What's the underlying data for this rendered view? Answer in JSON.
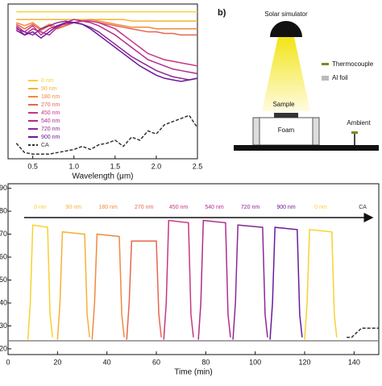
{
  "chart_data": [
    {
      "type": "line",
      "xlabel": "Wavelength (μm)",
      "xlim": [
        0.2,
        2.5
      ],
      "ylim": [
        0,
        100
      ],
      "xticks": [
        {
          "value": 0.5,
          "label": "0.5"
        },
        {
          "value": 1,
          "label": "1.0"
        },
        {
          "value": 1.5,
          "label": "1.5"
        },
        {
          "value": 2,
          "label": "2.0"
        },
        {
          "value": 2.5,
          "label": "2.5"
        }
      ],
      "legend": "lower left",
      "x": [
        0.3,
        0.4,
        0.5,
        0.6,
        0.7,
        0.8,
        0.9,
        1.0,
        1.1,
        1.2,
        1.3,
        1.4,
        1.5,
        1.6,
        1.7,
        1.8,
        1.9,
        2.0,
        2.1,
        2.2,
        2.3,
        2.4,
        2.5
      ],
      "series": [
        {
          "name": "0 nm",
          "color": "#f7d230",
          "values": [
            95,
            95,
            95,
            95,
            95,
            95,
            95,
            95,
            95,
            95,
            95,
            95,
            95,
            95,
            95,
            95,
            95,
            95,
            95,
            95,
            95,
            95,
            95
          ]
        },
        {
          "name": "90 nm",
          "color": "#f5b235",
          "values": [
            90,
            90,
            90,
            90,
            90,
            90,
            90,
            90,
            90,
            90,
            90,
            90,
            90,
            90,
            89,
            89,
            89,
            89,
            89,
            89,
            89,
            89,
            89
          ]
        },
        {
          "name": "180 nm",
          "color": "#f08a40",
          "values": [
            88,
            86,
            88,
            84,
            87,
            85,
            86,
            88,
            89,
            90,
            89,
            88,
            87,
            86,
            85,
            85,
            85,
            84,
            84,
            84,
            84,
            84,
            84
          ]
        },
        {
          "name": "270 nm",
          "color": "#e66650",
          "values": [
            87,
            84,
            87,
            83,
            86,
            84,
            86,
            88,
            89,
            89,
            88,
            87,
            86,
            85,
            84,
            83,
            82,
            82,
            81,
            81,
            80,
            80,
            80
          ]
        },
        {
          "name": "450 nm",
          "color": "#c83682",
          "values": [
            86,
            82,
            86,
            80,
            84,
            86,
            87,
            88,
            89,
            89,
            88,
            86,
            84,
            80,
            76,
            72,
            68,
            66,
            64,
            63,
            62,
            61,
            60
          ]
        },
        {
          "name": "540 nm",
          "color": "#b02c8e",
          "values": [
            85,
            80,
            84,
            82,
            80,
            85,
            88,
            90,
            89,
            88,
            86,
            83,
            80,
            76,
            72,
            68,
            64,
            62,
            60,
            58,
            57,
            56,
            55
          ]
        },
        {
          "name": "720 nm",
          "color": "#8c2896",
          "values": [
            84,
            82,
            80,
            84,
            86,
            88,
            89,
            88,
            87,
            85,
            82,
            78,
            74,
            70,
            66,
            63,
            60,
            57,
            55,
            53,
            52,
            51,
            52
          ]
        },
        {
          "name": "900 nm",
          "color": "#6a1a9a",
          "values": [
            83,
            80,
            82,
            78,
            82,
            86,
            88,
            88,
            87,
            84,
            80,
            76,
            72,
            68,
            64,
            60,
            57,
            54,
            52,
            51,
            50,
            51,
            52
          ]
        },
        {
          "name": "CA",
          "color": "#333333",
          "dash": true,
          "values": [
            10,
            4,
            3,
            3,
            3,
            4,
            5,
            6,
            8,
            6,
            9,
            10,
            12,
            8,
            14,
            12,
            18,
            16,
            22,
            24,
            26,
            28,
            20
          ]
        }
      ]
    },
    {
      "type": "line",
      "xlabel": "Time (min)",
      "xlim": [
        0,
        150
      ],
      "ylim": [
        17.5,
        92
      ],
      "xticks": [
        0,
        20,
        40,
        60,
        80,
        100,
        120,
        140
      ],
      "yticks": [
        20,
        30,
        40,
        50,
        60,
        70,
        80,
        90
      ],
      "name_labels": true,
      "series": [
        {
          "name": "0 nm",
          "color": "#f7d230",
          "x": [
            8,
            9,
            10,
            16,
            17,
            18
          ],
          "values": [
            24,
            40,
            74,
            73,
            35,
            25
          ]
        },
        {
          "name": "90 nm",
          "color": "#f5b235",
          "x": [
            20,
            21,
            22,
            31,
            32,
            33
          ],
          "values": [
            24,
            40,
            71,
            70,
            35,
            25
          ]
        },
        {
          "name": "180 nm",
          "color": "#f08a40",
          "x": [
            34,
            35,
            36,
            45,
            46,
            47
          ],
          "values": [
            24,
            40,
            70,
            69,
            35,
            25
          ]
        },
        {
          "name": "270 nm",
          "color": "#e66650",
          "x": [
            48,
            49,
            50,
            60,
            61,
            62
          ],
          "values": [
            24,
            40,
            67,
            67,
            35,
            25
          ]
        },
        {
          "name": "450 nm",
          "color": "#c83682",
          "x": [
            63,
            64,
            65,
            73,
            74,
            75
          ],
          "values": [
            24,
            40,
            76,
            75,
            35,
            25
          ]
        },
        {
          "name": "540 nm",
          "color": "#b02c8e",
          "x": [
            77,
            78,
            79,
            88,
            89,
            90
          ],
          "values": [
            24,
            40,
            76,
            75,
            35,
            25
          ]
        },
        {
          "name": "720 nm",
          "color": "#8c2896",
          "x": [
            91,
            92,
            93,
            103,
            104,
            105
          ],
          "values": [
            24,
            40,
            74,
            73,
            35,
            25
          ]
        },
        {
          "name": "900 nm",
          "color": "#6a1a9a",
          "x": [
            106,
            107,
            108,
            117,
            118,
            119
          ],
          "values": [
            24,
            40,
            73,
            72,
            35,
            25
          ]
        },
        {
          "name": "0 nm",
          "color": "#f7d230",
          "x": [
            120,
            121,
            122,
            131,
            132,
            133
          ],
          "values": [
            24,
            40,
            72,
            71,
            35,
            25
          ]
        },
        {
          "name": "CA",
          "color": "#333333",
          "dash": true,
          "x": [
            137,
            139,
            141,
            143,
            150
          ],
          "values": [
            25,
            25,
            27,
            29,
            29
          ]
        },
        {
          "color": "#888888",
          "x": [
            0,
            150
          ],
          "values": [
            23.5,
            23.5
          ]
        }
      ]
    }
  ],
  "diagram": {
    "label": "b)",
    "lamp": "Solar simulator",
    "thermocouple": "Thermocouple",
    "foil": "Al foil",
    "sample": "Sample",
    "foam": "Foam",
    "ambient": "Ambient"
  }
}
